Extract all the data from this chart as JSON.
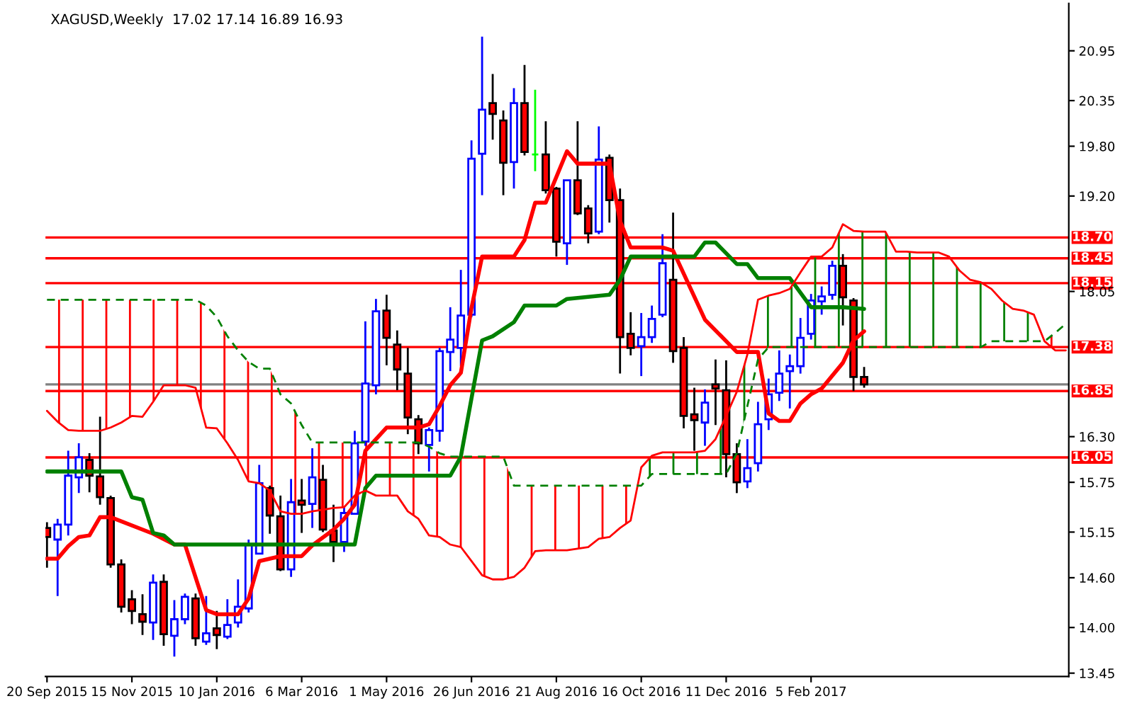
{
  "chart_data": {
    "type": "candlestick",
    "title": "XAGUSD,Weekly  17.02 17.14 16.89 16.93",
    "x": [
      "2015-09-20",
      "2015-09-27",
      "2015-10-04",
      "2015-10-11",
      "2015-10-18",
      "2015-10-25",
      "2015-11-01",
      "2015-11-08",
      "2015-11-15",
      "2015-11-22",
      "2015-11-29",
      "2015-12-06",
      "2015-12-13",
      "2015-12-20",
      "2015-12-27",
      "2016-01-03",
      "2016-01-10",
      "2016-01-17",
      "2016-01-24",
      "2016-01-31",
      "2016-02-07",
      "2016-02-14",
      "2016-02-21",
      "2016-02-28",
      "2016-03-06",
      "2016-03-13",
      "2016-03-20",
      "2016-03-27",
      "2016-04-03",
      "2016-04-10",
      "2016-04-17",
      "2016-04-24",
      "2016-05-01",
      "2016-05-08",
      "2016-05-15",
      "2016-05-22",
      "2016-05-29",
      "2016-06-05",
      "2016-06-12",
      "2016-06-19",
      "2016-06-26",
      "2016-07-03",
      "2016-07-10",
      "2016-07-17",
      "2016-07-24",
      "2016-07-31",
      "2016-08-07",
      "2016-08-14",
      "2016-08-21",
      "2016-08-28",
      "2016-09-04",
      "2016-09-11",
      "2016-09-18",
      "2016-09-25",
      "2016-10-02",
      "2016-10-09",
      "2016-10-16",
      "2016-10-23",
      "2016-10-30",
      "2016-11-06",
      "2016-11-13",
      "2016-11-20",
      "2016-11-27",
      "2016-12-04",
      "2016-12-11",
      "2016-12-18",
      "2016-12-25",
      "2017-01-01",
      "2017-01-08",
      "2017-01-15",
      "2017-01-22",
      "2017-01-29",
      "2017-02-05",
      "2017-02-12",
      "2017-02-19",
      "2017-02-26",
      "2017-03-05",
      "2017-03-12"
    ],
    "ohlc": [
      [
        15.2,
        15.27,
        14.72,
        15.09
      ],
      [
        15.06,
        15.31,
        14.38,
        15.24
      ],
      [
        15.24,
        16.13,
        15.11,
        15.83
      ],
      [
        15.81,
        16.22,
        15.62,
        16.05
      ],
      [
        16.02,
        16.1,
        15.63,
        15.83
      ],
      [
        15.82,
        16.54,
        15.48,
        15.57
      ],
      [
        15.56,
        15.59,
        14.72,
        14.76
      ],
      [
        14.76,
        14.82,
        14.18,
        14.25
      ],
      [
        14.34,
        14.45,
        14.04,
        14.2
      ],
      [
        14.16,
        14.4,
        13.91,
        14.07
      ],
      [
        14.06,
        14.64,
        13.85,
        14.54
      ],
      [
        14.55,
        14.64,
        13.78,
        13.92
      ],
      [
        13.9,
        14.33,
        13.65,
        14.1
      ],
      [
        14.1,
        14.41,
        14.04,
        14.37
      ],
      [
        14.35,
        14.41,
        13.78,
        13.87
      ],
      [
        13.83,
        14.38,
        13.79,
        13.93
      ],
      [
        13.99,
        14.2,
        13.74,
        13.91
      ],
      [
        13.89,
        14.34,
        13.86,
        14.03
      ],
      [
        14.06,
        14.58,
        14.0,
        14.25
      ],
      [
        14.23,
        15.06,
        14.18,
        15.0
      ],
      [
        14.89,
        15.96,
        14.89,
        15.74
      ],
      [
        15.68,
        15.71,
        15.13,
        15.35
      ],
      [
        15.34,
        15.59,
        14.68,
        14.7
      ],
      [
        14.7,
        15.79,
        14.61,
        15.51
      ],
      [
        15.53,
        15.79,
        15.14,
        15.48
      ],
      [
        15.49,
        16.16,
        15.2,
        15.81
      ],
      [
        15.78,
        15.96,
        15.15,
        15.18
      ],
      [
        15.17,
        15.48,
        14.79,
        15.03
      ],
      [
        15.03,
        15.45,
        14.91,
        15.38
      ],
      [
        15.37,
        16.37,
        15.36,
        16.22
      ],
      [
        16.24,
        17.69,
        16.19,
        16.94
      ],
      [
        16.92,
        17.96,
        16.81,
        17.81
      ],
      [
        17.82,
        18.01,
        17.16,
        17.49
      ],
      [
        17.41,
        17.58,
        16.86,
        17.11
      ],
      [
        17.06,
        17.37,
        16.33,
        16.53
      ],
      [
        16.51,
        16.56,
        16.09,
        16.22
      ],
      [
        16.2,
        16.41,
        15.88,
        16.38
      ],
      [
        16.37,
        17.37,
        16.24,
        17.33
      ],
      [
        17.32,
        17.86,
        17.09,
        17.47
      ],
      [
        17.37,
        18.31,
        17.15,
        17.76
      ],
      [
        17.77,
        19.87,
        17.74,
        19.65
      ],
      [
        19.71,
        21.12,
        19.21,
        20.24
      ],
      [
        20.32,
        20.67,
        19.88,
        20.19
      ],
      [
        20.11,
        20.23,
        19.21,
        19.6
      ],
      [
        19.61,
        20.5,
        19.29,
        20.32
      ],
      [
        20.32,
        20.78,
        19.69,
        19.73
      ],
      [
        19.7,
        20.48,
        19.5,
        19.7
      ],
      [
        19.7,
        20.1,
        19.23,
        19.27
      ],
      [
        19.29,
        19.31,
        18.47,
        18.65
      ],
      [
        18.63,
        19.39,
        18.37,
        19.39
      ],
      [
        19.39,
        20.1,
        18.97,
        18.99
      ],
      [
        19.05,
        19.09,
        18.63,
        18.75
      ],
      [
        18.77,
        20.04,
        18.74,
        19.64
      ],
      [
        19.66,
        19.7,
        18.88,
        19.15
      ],
      [
        19.15,
        19.29,
        17.06,
        17.5
      ],
      [
        17.54,
        17.8,
        17.28,
        17.37
      ],
      [
        17.39,
        17.79,
        17.03,
        17.5
      ],
      [
        17.5,
        17.88,
        17.43,
        17.72
      ],
      [
        17.77,
        18.74,
        17.74,
        18.39
      ],
      [
        18.19,
        19.0,
        17.19,
        17.33
      ],
      [
        17.37,
        17.5,
        16.4,
        16.55
      ],
      [
        16.57,
        16.89,
        16.13,
        16.5
      ],
      [
        16.47,
        16.87,
        16.19,
        16.71
      ],
      [
        16.93,
        17.23,
        16.44,
        16.88
      ],
      [
        16.86,
        17.22,
        15.81,
        16.09
      ],
      [
        16.09,
        16.22,
        15.62,
        15.75
      ],
      [
        15.76,
        16.27,
        15.68,
        15.92
      ],
      [
        15.98,
        16.72,
        15.88,
        16.45
      ],
      [
        16.51,
        17.0,
        16.38,
        16.81
      ],
      [
        16.83,
        17.34,
        16.73,
        17.06
      ],
      [
        17.09,
        17.29,
        16.64,
        17.15
      ],
      [
        17.15,
        17.73,
        17.06,
        17.49
      ],
      [
        17.54,
        18.02,
        17.47,
        17.94
      ],
      [
        17.93,
        18.11,
        17.77,
        17.99
      ],
      [
        18.01,
        18.42,
        17.95,
        18.36
      ],
      [
        18.36,
        18.5,
        17.64,
        17.98
      ],
      [
        17.94,
        17.97,
        16.85,
        17.02
      ],
      [
        17.02,
        17.14,
        16.89,
        16.93
      ]
    ],
    "series": [
      {
        "type": "line",
        "color": "#ff0000",
        "x": [
          "2015-09-20",
          "2015-09-27",
          "2015-10-04",
          "2015-10-11",
          "2015-10-18",
          "2015-10-25",
          "2015-11-01",
          "2015-11-29",
          "2015-12-13",
          "2015-12-20",
          "2016-01-03",
          "2016-01-10",
          "2016-01-24",
          "2016-01-31",
          "2016-02-07",
          "2016-02-21",
          "2016-03-06",
          "2016-03-13",
          "2016-03-27",
          "2016-04-03",
          "2016-04-10",
          "2016-04-17",
          "2016-05-01",
          "2016-05-22",
          "2016-05-29",
          "2016-06-05",
          "2016-06-12",
          "2016-06-19",
          "2016-06-26",
          "2016-07-03",
          "2016-07-24",
          "2016-07-31",
          "2016-08-07",
          "2016-08-14",
          "2016-08-28",
          "2016-09-04",
          "2016-09-25",
          "2016-10-02",
          "2016-10-09",
          "2016-10-30",
          "2016-11-06",
          "2016-11-27",
          "2016-12-18",
          "2017-01-01",
          "2017-01-08",
          "2017-01-15",
          "2017-01-22",
          "2017-01-29",
          "2017-02-05",
          "2017-02-12",
          "2017-02-26",
          "2017-03-05",
          "2017-03-12"
        ],
        "values": [
          14.83,
          14.83,
          14.98,
          15.09,
          15.11,
          15.33,
          15.33,
          15.13,
          15.0,
          15.0,
          14.21,
          14.16,
          14.16,
          14.35,
          14.8,
          14.86,
          14.86,
          14.99,
          15.18,
          15.31,
          15.48,
          16.13,
          16.41,
          16.41,
          16.45,
          16.67,
          16.92,
          17.07,
          17.85,
          18.47,
          18.47,
          18.67,
          19.12,
          19.12,
          19.74,
          19.59,
          19.59,
          18.9,
          18.58,
          18.58,
          18.54,
          17.71,
          17.32,
          17.32,
          16.58,
          16.49,
          16.49,
          16.7,
          16.81,
          16.88,
          17.19,
          17.46,
          17.57
        ]
      },
      {
        "type": "line",
        "color": "#008000",
        "x": [
          "2015-09-20",
          "2015-11-08",
          "2015-11-15",
          "2015-11-22",
          "2015-11-29",
          "2015-12-06",
          "2015-12-13",
          "2016-04-10",
          "2016-04-17",
          "2016-04-24",
          "2016-06-12",
          "2016-06-19",
          "2016-07-03",
          "2016-07-10",
          "2016-07-24",
          "2016-07-31",
          "2016-08-21",
          "2016-08-28",
          "2016-09-25",
          "2016-10-02",
          "2016-10-09",
          "2016-11-20",
          "2016-11-27",
          "2016-12-04",
          "2016-12-18",
          "2016-12-25",
          "2017-01-01",
          "2017-01-22",
          "2017-02-05",
          "2017-02-26",
          "2017-03-12"
        ],
        "values": [
          15.88,
          15.88,
          15.57,
          15.54,
          15.14,
          15.11,
          15.0,
          15.0,
          15.68,
          15.83,
          15.83,
          16.06,
          17.46,
          17.51,
          17.68,
          17.88,
          17.88,
          17.96,
          18.01,
          18.19,
          18.47,
          18.47,
          18.64,
          18.64,
          18.38,
          18.38,
          18.21,
          18.21,
          17.86,
          17.86,
          17.84
        ]
      },
      {
        "type": "line",
        "color": "#ff0000",
        "x": [
          "2015-09-20",
          "2015-09-27",
          "2015-10-04",
          "2015-10-11",
          "2015-10-18",
          "2015-10-25",
          "2015-11-01",
          "2015-11-08",
          "2015-11-15",
          "2015-11-22",
          "2015-11-29",
          "2015-12-06",
          "2015-12-13",
          "2015-12-20",
          "2015-12-27",
          "2016-01-03",
          "2016-01-10",
          "2016-01-17",
          "2016-01-24",
          "2016-01-31",
          "2016-02-07",
          "2016-02-14",
          "2016-02-21",
          "2016-02-28",
          "2016-03-06",
          "2016-03-13",
          "2016-03-20",
          "2016-03-27",
          "2016-04-03",
          "2016-04-10",
          "2016-04-17",
          "2016-04-24",
          "2016-05-01",
          "2016-05-08",
          "2016-05-15",
          "2016-05-22",
          "2016-05-29",
          "2016-06-05",
          "2016-06-12",
          "2016-06-19",
          "2016-06-26",
          "2016-07-03",
          "2016-07-10",
          "2016-07-17",
          "2016-07-24",
          "2016-07-31",
          "2016-08-07",
          "2016-08-14",
          "2016-08-21",
          "2016-08-28",
          "2016-09-04",
          "2016-09-11",
          "2016-09-18",
          "2016-09-25",
          "2016-10-02",
          "2016-10-09",
          "2016-10-16",
          "2016-10-23",
          "2016-10-30",
          "2016-11-06",
          "2016-11-13",
          "2016-11-20",
          "2016-11-27",
          "2016-12-04",
          "2016-12-11",
          "2016-12-18",
          "2016-12-25",
          "2017-01-01",
          "2017-01-08",
          "2017-01-15",
          "2017-01-22",
          "2017-01-29",
          "2017-02-05",
          "2017-02-12",
          "2017-02-19",
          "2017-02-26",
          "2017-03-05",
          "2017-03-12",
          "2017-03-19",
          "2017-03-26",
          "2017-04-02",
          "2017-04-09",
          "2017-04-16",
          "2017-04-23",
          "2017-04-30",
          "2017-05-07",
          "2017-05-14",
          "2017-05-21",
          "2017-05-28",
          "2017-06-04",
          "2017-06-11",
          "2017-06-18",
          "2017-06-25",
          "2017-07-02",
          "2017-07-09",
          "2017-07-16",
          "2017-07-23"
        ],
        "values": [
          16.61,
          16.48,
          16.38,
          16.37,
          16.37,
          16.37,
          16.41,
          16.47,
          16.55,
          16.54,
          16.72,
          16.92,
          16.92,
          16.92,
          16.89,
          16.41,
          16.4,
          16.22,
          16.02,
          15.76,
          15.74,
          15.65,
          15.4,
          15.37,
          15.37,
          15.4,
          15.42,
          15.44,
          15.45,
          15.59,
          15.65,
          15.59,
          15.59,
          15.59,
          15.4,
          15.31,
          15.11,
          15.09,
          15.0,
          14.97,
          14.8,
          14.63,
          14.58,
          14.58,
          14.61,
          14.72,
          14.92,
          14.93,
          14.93,
          14.93,
          14.95,
          14.97,
          15.07,
          15.09,
          15.2,
          15.29,
          15.93,
          16.07,
          16.11,
          16.11,
          16.11,
          16.11,
          16.13,
          16.27,
          16.55,
          16.84,
          17.29,
          17.95,
          18.0,
          18.03,
          18.08,
          18.28,
          18.47,
          18.47,
          18.58,
          18.86,
          18.78,
          18.77,
          18.77,
          18.77,
          18.53,
          18.53,
          18.52,
          18.52,
          18.52,
          18.47,
          18.3,
          18.19,
          18.16,
          18.08,
          17.94,
          17.84,
          17.82,
          17.77,
          17.45,
          17.34,
          17.34
        ]
      },
      {
        "type": "line",
        "color": "#008000",
        "line_style": "dashed",
        "x": [
          "2015-09-20",
          "2015-09-27",
          "2015-10-04",
          "2015-10-11",
          "2015-10-18",
          "2015-10-25",
          "2015-11-01",
          "2015-11-08",
          "2015-11-15",
          "2015-11-22",
          "2015-11-29",
          "2015-12-06",
          "2015-12-13",
          "2015-12-20",
          "2015-12-27",
          "2016-01-03",
          "2016-01-10",
          "2016-01-17",
          "2016-01-24",
          "2016-01-31",
          "2016-02-07",
          "2016-02-14",
          "2016-02-21",
          "2016-02-28",
          "2016-03-06",
          "2016-03-13",
          "2016-03-20",
          "2016-03-27",
          "2016-04-03",
          "2016-04-10",
          "2016-04-17",
          "2016-04-24",
          "2016-05-01",
          "2016-05-08",
          "2016-05-15",
          "2016-05-22",
          "2016-05-29",
          "2016-06-05",
          "2016-06-12",
          "2016-06-19",
          "2016-06-26",
          "2016-07-03",
          "2016-07-10",
          "2016-07-17",
          "2016-07-24",
          "2016-07-31",
          "2016-08-07",
          "2016-08-14",
          "2016-08-21",
          "2016-08-28",
          "2016-09-04",
          "2016-09-11",
          "2016-09-18",
          "2016-09-25",
          "2016-10-02",
          "2016-10-09",
          "2016-10-16",
          "2016-10-23",
          "2016-10-30",
          "2016-11-06",
          "2016-11-13",
          "2016-11-20",
          "2016-11-27",
          "2016-12-04",
          "2016-12-11",
          "2016-12-18",
          "2016-12-25",
          "2017-01-01",
          "2017-01-08",
          "2017-01-15",
          "2017-01-22",
          "2017-01-29",
          "2017-02-05",
          "2017-02-12",
          "2017-02-19",
          "2017-02-26",
          "2017-03-05",
          "2017-03-12",
          "2017-03-19",
          "2017-03-26",
          "2017-04-02",
          "2017-04-09",
          "2017-04-16",
          "2017-04-23",
          "2017-04-30",
          "2017-05-07",
          "2017-05-14",
          "2017-05-21",
          "2017-05-28",
          "2017-06-04",
          "2017-06-11",
          "2017-06-18",
          "2017-06-25",
          "2017-07-02",
          "2017-07-09",
          "2017-07-16",
          "2017-07-23"
        ],
        "values": [
          17.95,
          17.95,
          17.95,
          17.95,
          17.95,
          17.95,
          17.95,
          17.95,
          17.95,
          17.95,
          17.95,
          17.95,
          17.95,
          17.95,
          17.95,
          17.88,
          17.74,
          17.51,
          17.34,
          17.2,
          17.12,
          17.12,
          16.81,
          16.7,
          16.44,
          16.23,
          16.23,
          16.23,
          16.23,
          16.23,
          16.23,
          16.23,
          16.23,
          16.23,
          16.23,
          16.23,
          16.18,
          16.1,
          16.06,
          16.06,
          16.06,
          16.06,
          16.06,
          16.06,
          15.71,
          15.71,
          15.71,
          15.71,
          15.71,
          15.71,
          15.71,
          15.71,
          15.71,
          15.71,
          15.71,
          15.71,
          15.71,
          15.85,
          15.85,
          15.85,
          15.85,
          15.85,
          15.85,
          15.85,
          15.85,
          16.1,
          16.67,
          17.23,
          17.38,
          17.38,
          17.38,
          17.38,
          17.38,
          17.38,
          17.38,
          17.38,
          17.38,
          17.38,
          17.38,
          17.38,
          17.38,
          17.38,
          17.38,
          17.38,
          17.38,
          17.38,
          17.38,
          17.38,
          17.38,
          17.45,
          17.45,
          17.45,
          17.45,
          17.45,
          17.45,
          17.55,
          17.66
        ]
      }
    ],
    "ref_lines": [
      {
        "axis": "y",
        "value": 18.7,
        "label": "18.70",
        "color": "#ff0000"
      },
      {
        "axis": "y",
        "value": 18.45,
        "label": "18.45",
        "color": "#ff0000"
      },
      {
        "axis": "y",
        "value": 18.15,
        "label": "18.15",
        "color": "#ff0000"
      },
      {
        "axis": "y",
        "value": 17.38,
        "label": "17.38",
        "color": "#ff0000"
      },
      {
        "axis": "y",
        "value": 16.93,
        "color": "#808080"
      },
      {
        "axis": "y",
        "value": 16.85,
        "label": "16.85",
        "color": "#ff0000"
      },
      {
        "axis": "y",
        "value": 16.05,
        "label": "16.05",
        "color": "#ff0000"
      }
    ],
    "xlim": [
      "2015-09-19",
      "2017-07-25"
    ],
    "xticks": [
      {
        "value": "2015-09-20",
        "label": "20 Sep 2015"
      },
      {
        "value": "2015-11-15",
        "label": "15 Nov 2015"
      },
      {
        "value": "2016-01-10",
        "label": "10 Jan 2016"
      },
      {
        "value": "2016-03-06",
        "label": "6 Mar 2016"
      },
      {
        "value": "2016-05-01",
        "label": "1 May 2016"
      },
      {
        "value": "2016-06-26",
        "label": "26 Jun 2016"
      },
      {
        "value": "2016-08-21",
        "label": "21 Aug 2016"
      },
      {
        "value": "2016-10-16",
        "label": "16 Oct 2016"
      },
      {
        "value": "2016-12-11",
        "label": "11 Dec 2016"
      },
      {
        "value": "2017-02-05",
        "label": "5 Feb 2017"
      }
    ],
    "ylim": [
      13.41,
      21.52
    ],
    "yticks": [
      {
        "value": 13.45,
        "label": "13.45"
      },
      {
        "value": 14.0,
        "label": "14.00"
      },
      {
        "value": 14.6,
        "label": "14.60"
      },
      {
        "value": 15.15,
        "label": "15.15"
      },
      {
        "value": 15.75,
        "label": "15.75"
      },
      {
        "value": 16.3,
        "label": "16.30"
      },
      {
        "value": 18.05,
        "label": "18.05"
      },
      {
        "value": 19.2,
        "label": "19.20"
      },
      {
        "value": 19.8,
        "label": "19.80"
      },
      {
        "value": 20.35,
        "label": "20.35"
      },
      {
        "value": 20.95,
        "label": "20.95"
      }
    ],
    "grid": false
  }
}
